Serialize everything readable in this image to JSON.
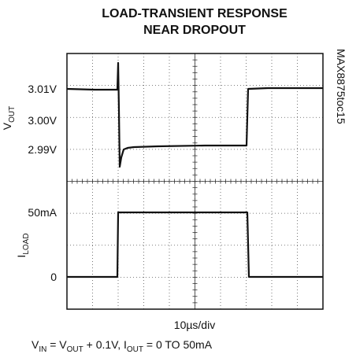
{
  "title": [
    "LOAD-TRANSIENT RESPONSE",
    "NEAR DROPOUT"
  ],
  "side_label": "MAX8875toc15",
  "channels": [
    {
      "name": [
        {
          "text": "V"
        },
        {
          "text": "OUT",
          "sub": true
        }
      ],
      "labels": [
        "3.01V",
        "3.00V",
        "2.99V"
      ]
    },
    {
      "name": [
        {
          "text": "I"
        },
        {
          "text": "LOAD",
          "sub": true
        }
      ],
      "labels": [
        "50mA",
        "0"
      ]
    }
  ],
  "timebase": "10µs/div",
  "caption": [
    {
      "text": "V"
    },
    {
      "text": "IN",
      "sub": true
    },
    {
      "text": " = V"
    },
    {
      "text": "OUT",
      "sub": true
    },
    {
      "text": " + 0.1V, I"
    },
    {
      "text": "OUT",
      "sub": true
    },
    {
      "text": " = 0 TO 50mA"
    }
  ]
}
